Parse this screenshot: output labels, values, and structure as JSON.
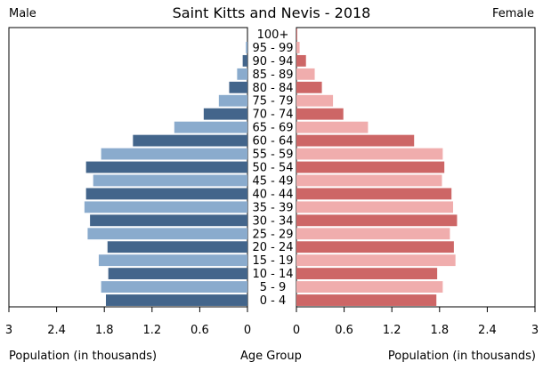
{
  "chart_data": {
    "type": "bar",
    "orientation": "horizontal",
    "layout": "population-pyramid",
    "title": "Saint Kitts and Nevis - 2018",
    "left_label": "Male",
    "right_label": "Female",
    "xlabel_left": "Population (in thousands)",
    "xlabel_center": "Age Group",
    "xlabel_right": "Population (in thousands)",
    "xlim": [
      0,
      3
    ],
    "x_ticks": [
      "0",
      "0.6",
      "1.2",
      "1.8",
      "2.4",
      "3"
    ],
    "categories": [
      "0 - 4",
      "5 - 9",
      "10 - 14",
      "15 - 19",
      "20 - 24",
      "25 - 29",
      "30 - 34",
      "35 - 39",
      "40 - 44",
      "45 - 49",
      "50 - 54",
      "55 - 59",
      "60 - 64",
      "65 - 69",
      "70 - 74",
      "75 - 79",
      "80 - 84",
      "85 - 89",
      "90 - 94",
      "95 - 99",
      "100+"
    ],
    "series": [
      {
        "name": "Male",
        "values": [
          1.78,
          1.84,
          1.75,
          1.87,
          1.76,
          2.01,
          1.98,
          2.05,
          2.03,
          1.94,
          2.03,
          1.84,
          1.44,
          0.92,
          0.55,
          0.36,
          0.23,
          0.13,
          0.06,
          0.02,
          0.0
        ]
      },
      {
        "name": "Female",
        "values": [
          1.76,
          1.84,
          1.77,
          2.0,
          1.98,
          1.93,
          2.02,
          1.97,
          1.95,
          1.83,
          1.86,
          1.84,
          1.48,
          0.9,
          0.59,
          0.46,
          0.32,
          0.23,
          0.12,
          0.04,
          0.01
        ]
      }
    ],
    "colors": {
      "male_dark": "#43658b",
      "male_light": "#8aabcd",
      "female_dark": "#cd6666",
      "female_light": "#f0adad"
    },
    "grid": false
  }
}
